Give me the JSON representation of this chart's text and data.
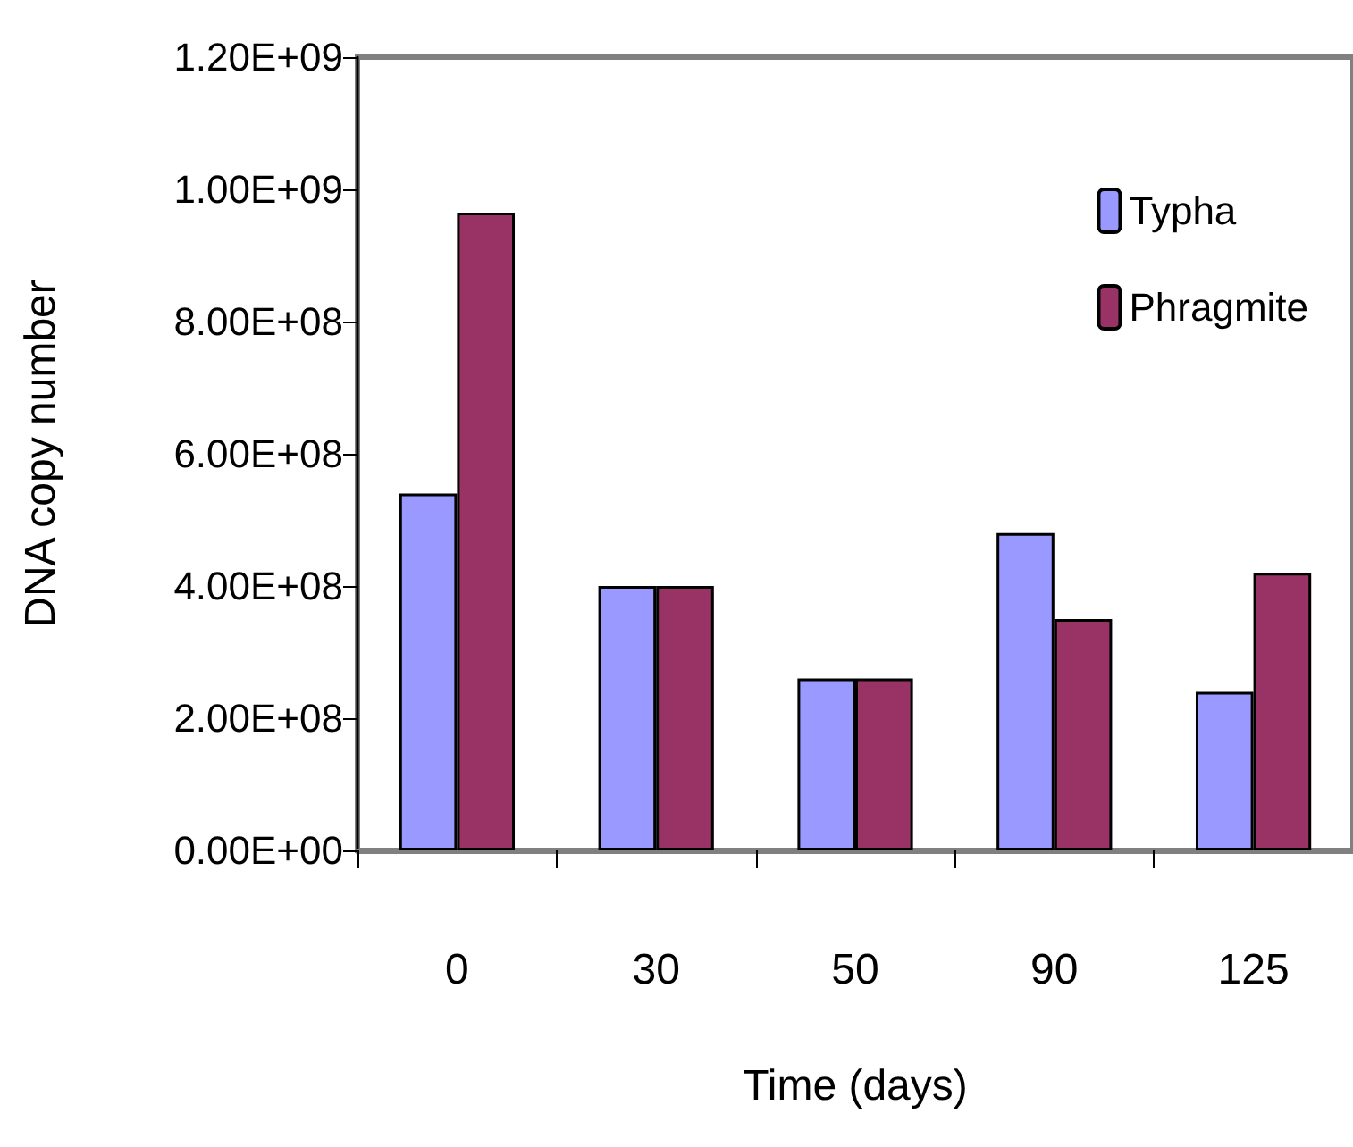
{
  "chart_data": {
    "type": "bar",
    "xlabel": "Time (days)",
    "ylabel": "DNA copy number",
    "categories": [
      "0",
      "30",
      "50",
      "90",
      "125"
    ],
    "series": [
      {
        "name": "Typha",
        "color": "#9999ff",
        "values": [
          540000000,
          400000000,
          260000000,
          480000000,
          240000000
        ]
      },
      {
        "name": "Phragmite",
        "color": "#993366",
        "values": [
          965000000,
          400000000,
          260000000,
          350000000,
          420000000
        ]
      }
    ],
    "ylim": [
      0,
      1200000000
    ],
    "yticks": [
      {
        "value": 0,
        "label": "0.00E+00"
      },
      {
        "value": 200000000,
        "label": "2.00E+08"
      },
      {
        "value": 400000000,
        "label": "4.00E+08"
      },
      {
        "value": 600000000,
        "label": "6.00E+08"
      },
      {
        "value": 800000000,
        "label": "8.00E+08"
      },
      {
        "value": 1000000000,
        "label": "1.00E+09"
      },
      {
        "value": 1200000000,
        "label": "1.20E+09"
      }
    ],
    "grid": false,
    "legend": "top right"
  }
}
